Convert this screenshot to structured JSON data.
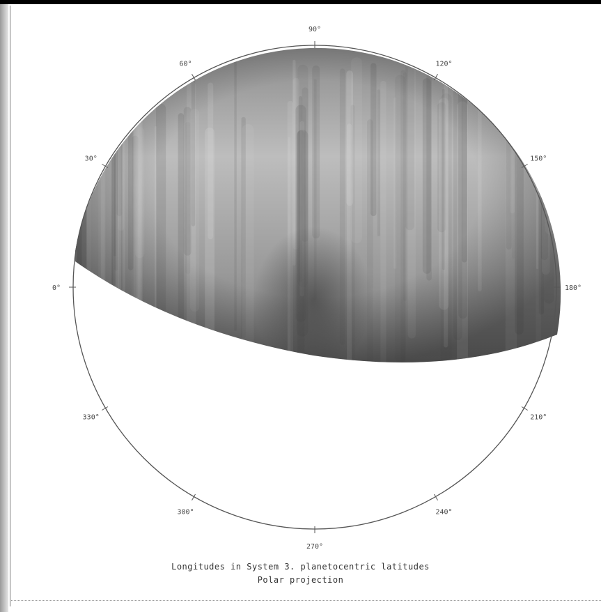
{
  "map": {
    "projection": "polar",
    "longitude_labels": [
      "90°",
      "120°",
      "150°",
      "180°",
      "210°",
      "240°",
      "270°",
      "300°",
      "330°",
      "0°",
      "30°",
      "60°"
    ],
    "caption_line1": "Longitudes in System 3. planetocentric latitudes",
    "caption_line2": "Polar projection",
    "colors": {
      "background": "#ffffff",
      "frame": "#000000",
      "circle_outline": "#555555",
      "shading_light": "#c8c8c8",
      "shading_dark": "#5a5a5a"
    }
  }
}
